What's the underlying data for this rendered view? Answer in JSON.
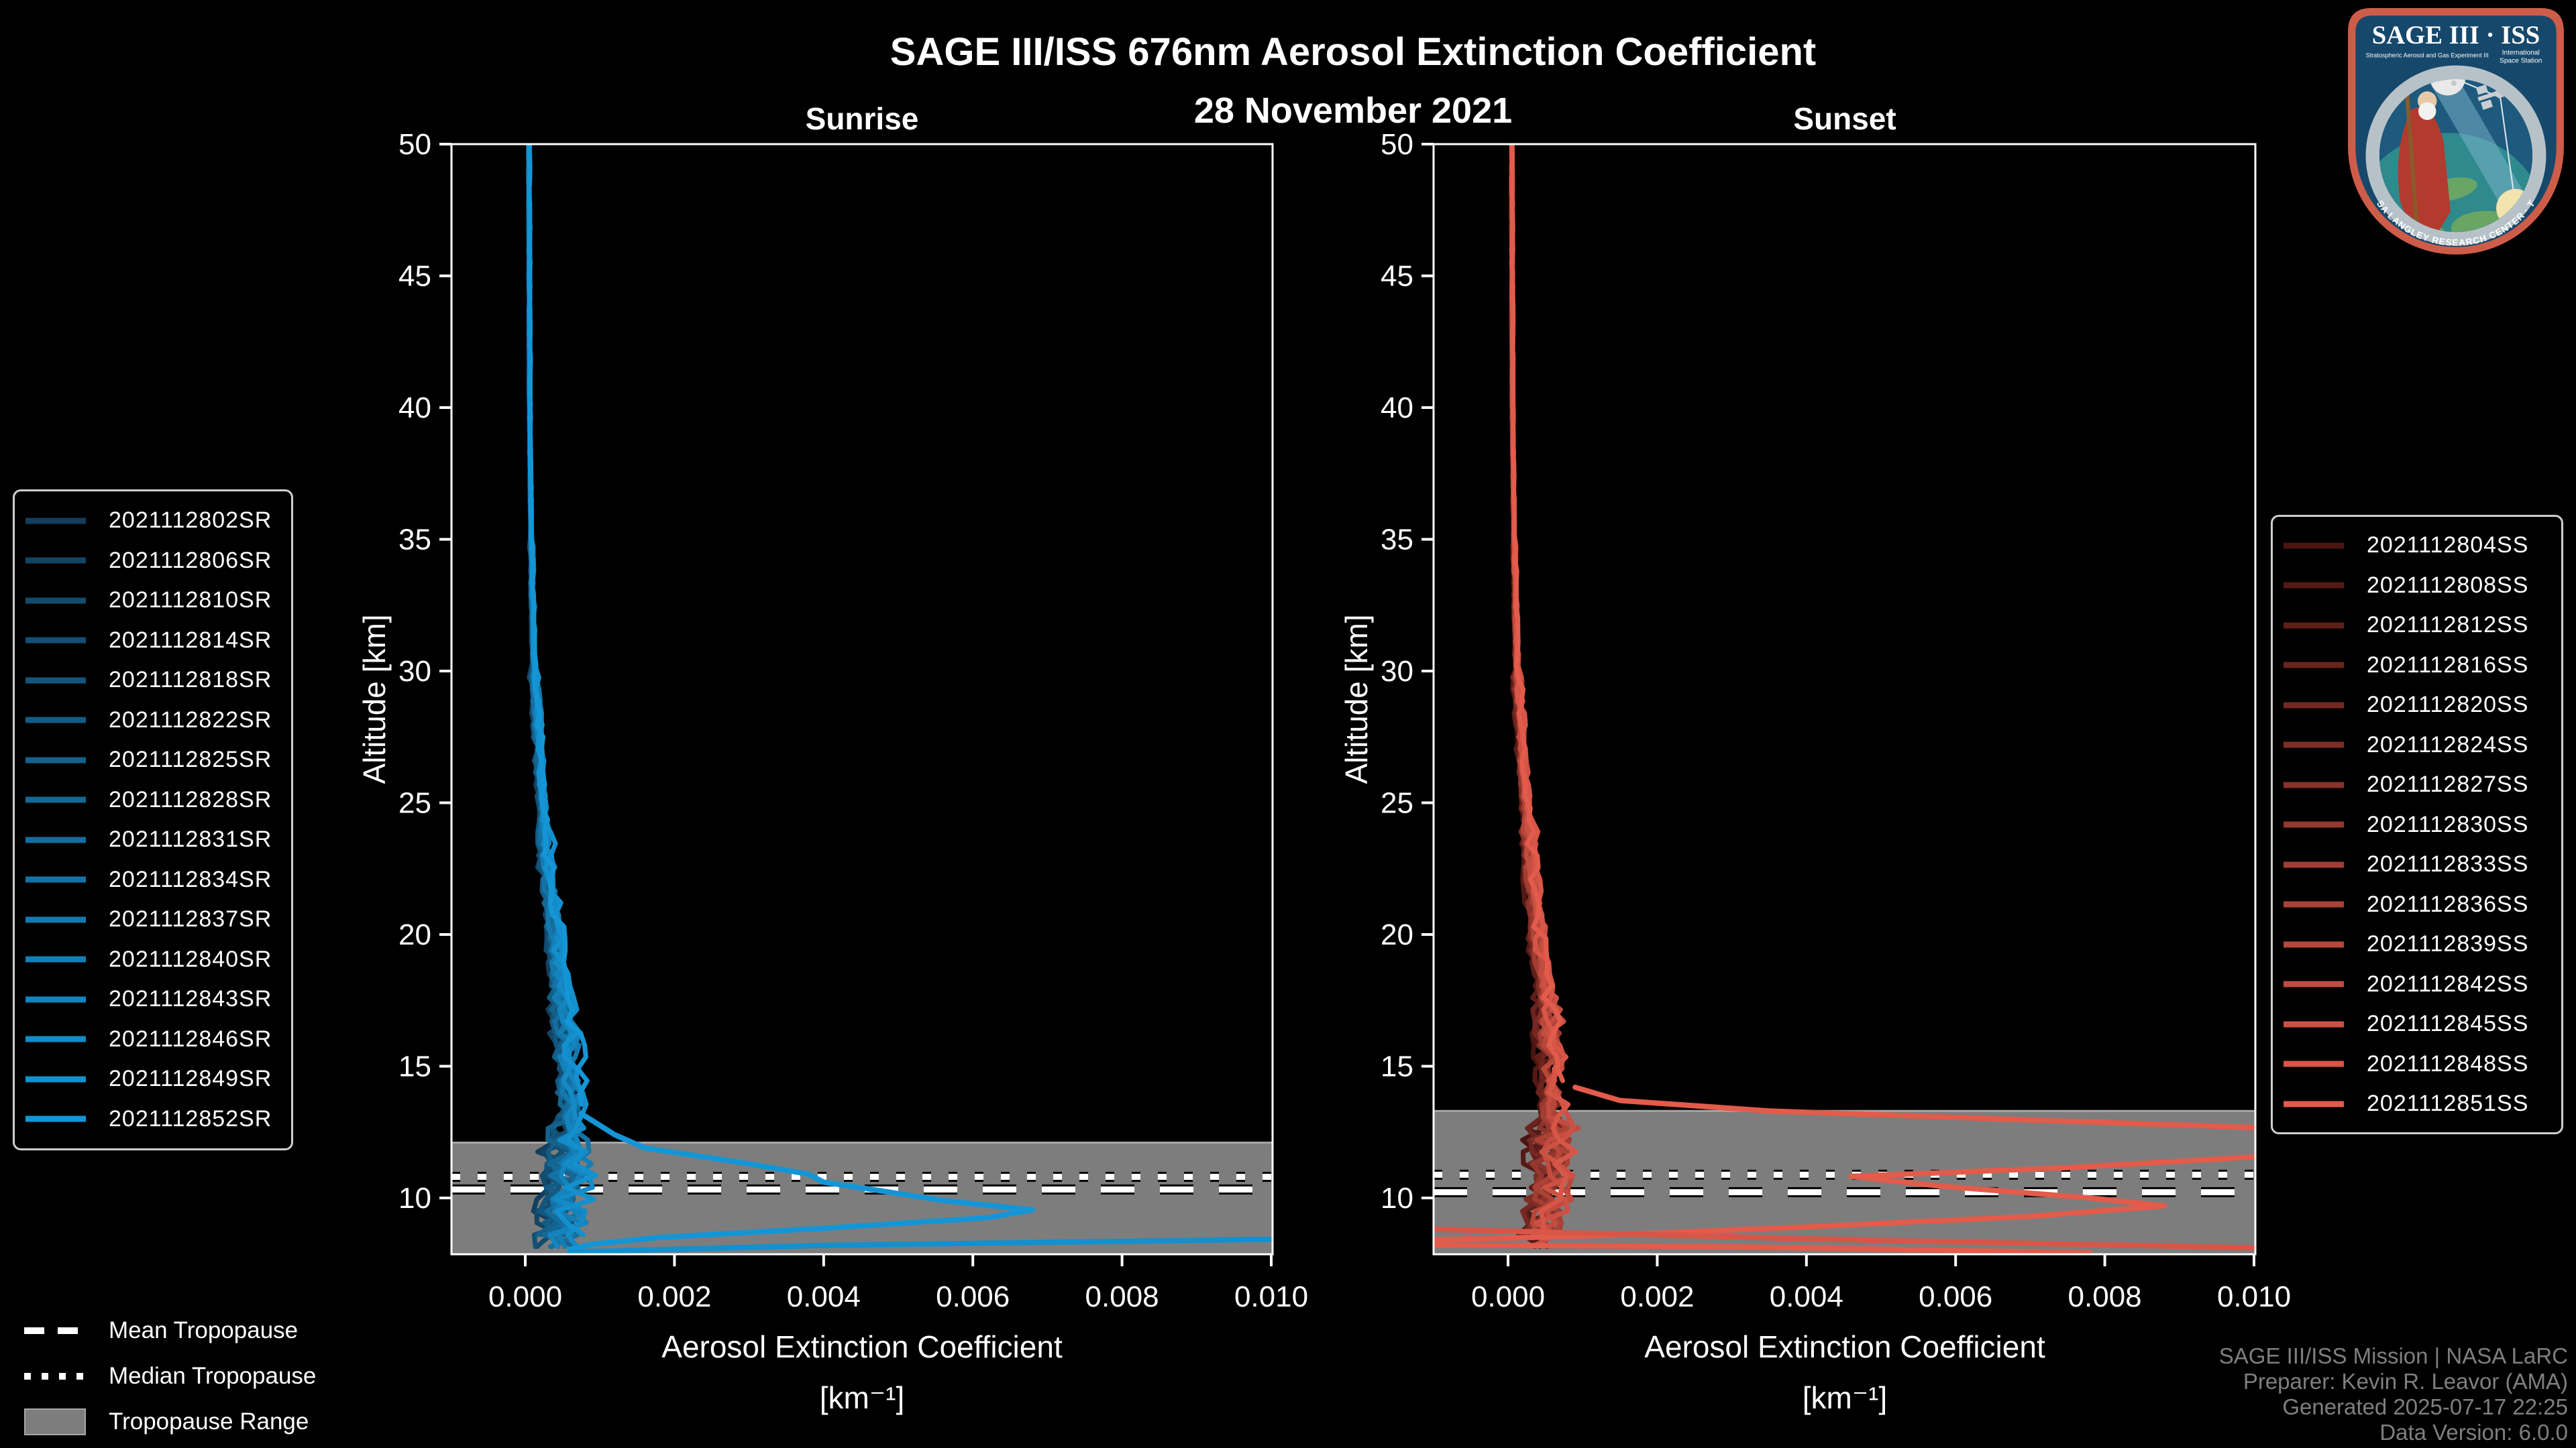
{
  "title": "SAGE III/ISS 676nm Aerosol Extinction Coefficient",
  "date_subtitle": "28 November 2021",
  "footer": {
    "lines": [
      "SAGE III/ISS Mission | NASA LaRC",
      "Preparer: Kevin R. Leavor (AMA)",
      "Generated 2025-07-17 22:25",
      "Data Version: 6.0.0"
    ]
  },
  "tropopause_legend": {
    "mean_label": "Mean Tropopause",
    "median_label": "Median Tropopause",
    "range_label": "Tropopause Range"
  },
  "logo": {
    "title": "SAGE III · ISS",
    "subtitle_left": "Stratospheric Aerosol and Gas Experiment III",
    "subtitle_right_1": "International",
    "subtitle_right_2": "Space Station",
    "ring_text": "BALL · NASA LANGLEY RESEARCH CENTER · TAS-I · ESA"
  },
  "colors": {
    "background": "#000000",
    "axis": "#ffffff",
    "tropopause_band": "#7d7d7d",
    "tropopause_band_edge": "#a6a6a6",
    "tropopause_line": "#ffffff",
    "tropopause_line_outline": "#000000",
    "footer_text": "#7f7f7f"
  },
  "chart_data": [
    {
      "type": "line",
      "panel": "sunrise",
      "title": "Sunrise",
      "xlabel": "Aerosol Extinction Coefficient",
      "xlabel_units": "[km⁻¹]",
      "ylabel": "Altitude [km]",
      "xlim": [
        -0.00099,
        0.01002
      ],
      "ylim": [
        7.86,
        50
      ],
      "grid": false,
      "legend_position": "outside-left",
      "xticks": [
        0.0,
        0.002,
        0.004,
        0.006,
        0.008,
        0.01
      ],
      "xtick_labels": [
        "0.000",
        "0.002",
        "0.004",
        "0.006",
        "0.008",
        "0.010"
      ],
      "yticks": [
        10,
        15,
        20,
        25,
        30,
        35,
        40,
        45,
        50
      ],
      "tropopause": {
        "mean_km": 10.32,
        "median_km": 10.8,
        "range_top_km": 12.1,
        "range_bottom_km": 7.86
      },
      "base_profile": [
        [
          50,
          5e-05
        ],
        [
          40,
          6e-05
        ],
        [
          35,
          8e-05
        ],
        [
          30,
          0.00012
        ],
        [
          27,
          0.00018
        ],
        [
          24,
          0.00026
        ],
        [
          21,
          0.00035
        ],
        [
          19,
          0.00042
        ],
        [
          17,
          0.00052
        ],
        [
          15,
          0.00058
        ],
        [
          13,
          0.0006
        ],
        [
          11,
          0.00058
        ],
        [
          10,
          0.00052
        ],
        [
          9,
          0.00047
        ],
        [
          8,
          0.00042
        ]
      ],
      "series": [
        {
          "name": "2021112802SR",
          "color": "#133f5d"
        },
        {
          "name": "2021112806SR",
          "color": "#134565"
        },
        {
          "name": "2021112810SR",
          "color": "#134b6d"
        },
        {
          "name": "2021112814SR",
          "color": "#135075"
        },
        {
          "name": "2021112818SR",
          "color": "#13567d"
        },
        {
          "name": "2021112822SR",
          "color": "#135c85"
        },
        {
          "name": "2021112825SR",
          "color": "#13628d"
        },
        {
          "name": "2021112828SR",
          "color": "#136895"
        },
        {
          "name": "2021112831SR",
          "color": "#146d9e"
        },
        {
          "name": "2021112834SR",
          "color": "#1473a6"
        },
        {
          "name": "2021112837SR",
          "color": "#1479ae"
        },
        {
          "name": "2021112840SR",
          "color": "#147fb6"
        },
        {
          "name": "2021112843SR",
          "color": "#1484be"
        },
        {
          "name": "2021112846SR",
          "color": "#148ac6"
        },
        {
          "name": "2021112849SR",
          "color": "#1490ce"
        },
        {
          "name": "2021112852SR",
          "color": "#1496d6"
        }
      ],
      "feature_curves": [
        {
          "series_index": 15,
          "cluster_stop_km": 13.2,
          "points": [
            [
              0.00075,
              13.2
            ],
            [
              0.0012,
              12.4
            ],
            [
              0.0016,
              11.9
            ],
            [
              0.003,
              11.3
            ],
            [
              0.0038,
              10.9
            ],
            [
              0.004,
              10.6
            ],
            [
              0.0047,
              10.3
            ],
            [
              0.0056,
              9.9
            ],
            [
              0.0068,
              9.55
            ],
            [
              0.0062,
              9.25
            ],
            [
              0.004,
              8.85
            ],
            [
              0.0018,
              8.5
            ],
            [
              0.0009,
              8.25
            ],
            [
              0.0006,
              8.05
            ]
          ]
        },
        {
          "series_index": 14,
          "points": [
            [
              0.0006,
              7.95
            ],
            [
              0.004,
              8.2
            ],
            [
              0.0105,
              8.45
            ]
          ]
        }
      ]
    },
    {
      "type": "line",
      "panel": "sunset",
      "title": "Sunset",
      "xlabel": "Aerosol Extinction Coefficient",
      "xlabel_units": "[km⁻¹]",
      "ylabel": "Altitude [km]",
      "xlim": [
        -0.00099,
        0.01002
      ],
      "ylim": [
        7.86,
        50
      ],
      "grid": false,
      "legend_position": "outside-right",
      "xticks": [
        0.0,
        0.002,
        0.004,
        0.006,
        0.008,
        0.01
      ],
      "xtick_labels": [
        "0.000",
        "0.002",
        "0.004",
        "0.006",
        "0.008",
        "0.010"
      ],
      "yticks": [
        10,
        15,
        20,
        25,
        30,
        35,
        40,
        45,
        50
      ],
      "tropopause": {
        "mean_km": 10.22,
        "median_km": 10.88,
        "range_top_km": 13.3,
        "range_bottom_km": 7.86
      },
      "base_profile": [
        [
          50,
          5e-05
        ],
        [
          40,
          6e-05
        ],
        [
          35,
          8e-05
        ],
        [
          30,
          0.00012
        ],
        [
          27,
          0.00018
        ],
        [
          24,
          0.00026
        ],
        [
          21,
          0.00035
        ],
        [
          19,
          0.00042
        ],
        [
          17,
          0.00052
        ],
        [
          15,
          0.00058
        ],
        [
          13,
          0.0006
        ],
        [
          11,
          0.00058
        ],
        [
          10,
          0.00052
        ],
        [
          9,
          0.00047
        ],
        [
          8,
          0.00042
        ]
      ],
      "series": [
        {
          "name": "2021112804SS",
          "color": "#4a1411"
        },
        {
          "name": "2021112808SS",
          "color": "#551915"
        },
        {
          "name": "2021112812SS",
          "color": "#601e19"
        },
        {
          "name": "2021112816SS",
          "color": "#6b231d"
        },
        {
          "name": "2021112820SS",
          "color": "#752822"
        },
        {
          "name": "2021112824SS",
          "color": "#802d26"
        },
        {
          "name": "2021112827SS",
          "color": "#8b322a"
        },
        {
          "name": "2021112830SS",
          "color": "#96382e"
        },
        {
          "name": "2021112833SS",
          "color": "#a13d32"
        },
        {
          "name": "2021112836SS",
          "color": "#ac4236"
        },
        {
          "name": "2021112839SS",
          "color": "#b7473a"
        },
        {
          "name": "2021112842SS",
          "color": "#c14c3f"
        },
        {
          "name": "2021112845SS",
          "color": "#cc5143"
        },
        {
          "name": "2021112848SS",
          "color": "#d75647"
        },
        {
          "name": "2021112851SS",
          "color": "#e25b4b"
        }
      ],
      "feature_curves": [
        {
          "series_index": 14,
          "cluster_stop_km": 14.2,
          "points": [
            [
              0.0009,
              14.2
            ],
            [
              0.0015,
              13.7
            ],
            [
              0.0035,
              13.3
            ],
            [
              0.0118,
              12.5
            ],
            [
              0.0118,
              11.85
            ],
            [
              0.0075,
              11.15
            ],
            [
              0.0046,
              10.82
            ],
            [
              0.0058,
              10.45
            ],
            [
              0.0078,
              10.0
            ],
            [
              0.0088,
              9.7
            ],
            [
              0.007,
              9.3
            ],
            [
              0.004,
              8.9
            ],
            [
              0.001,
              8.55
            ],
            [
              -0.0015,
              8.38
            ]
          ]
        },
        {
          "series_index": 14,
          "points": [
            [
              -0.0015,
              8.22
            ],
            [
              0.003,
              8.15
            ],
            [
              0.0078,
              7.92
            ]
          ]
        },
        {
          "series_index": 13,
          "points": [
            [
              -0.0015,
              8.85
            ],
            [
              0.004,
              8.45
            ],
            [
              0.0105,
              8.08
            ]
          ]
        }
      ]
    }
  ]
}
